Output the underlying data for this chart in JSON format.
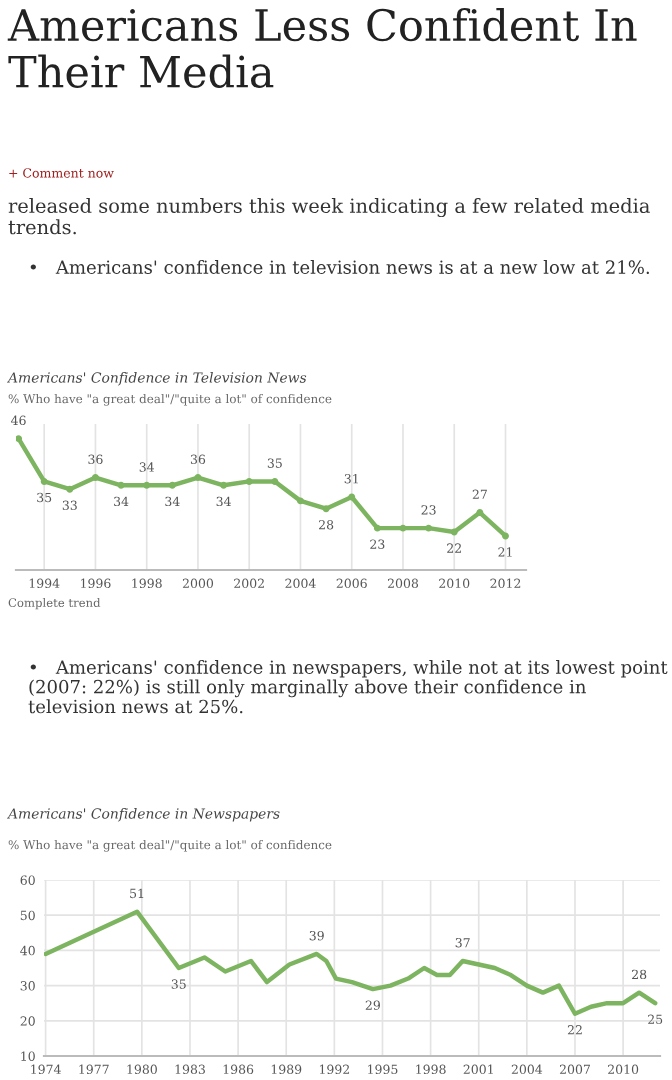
{
  "chart_data": [
    {
      "type": "line",
      "title": "Americans' Confidence in Television News",
      "subtitle": "% Who have \"a great deal\"/\"quite a lot\" of confidence",
      "annotations": [
        "Americans Less Confident In Their Media",
        "+ Comment now",
        "released some numbers this week indicating a few related media trends.",
        "•   Americans' confidence in television news is at a new low at 21%.",
        "Complete trend"
      ],
      "x": [
        1993,
        1994,
        1995,
        1996,
        1997,
        1998,
        1999,
        2000,
        2001,
        2002,
        2003,
        2004,
        2005,
        2006,
        2007,
        2008,
        2009,
        2010,
        2011,
        2012
      ],
      "series": [
        {
          "color": "#7db460",
          "values": [
            46,
            35,
            33,
            36,
            34,
            34,
            34,
            36,
            34,
            35,
            35,
            30,
            28,
            31,
            23,
            23,
            23,
            22,
            27,
            21
          ],
          "value_labels": [
            "46",
            "35",
            "33",
            "36",
            "34",
            "34",
            "34",
            "36",
            "34",
            null,
            "35",
            null,
            "28",
            "31",
            "23",
            null,
            "23",
            "22",
            "27",
            "21"
          ]
        }
      ],
      "xlim": [
        1992.9,
        2012.8
      ],
      "xticks": [
        1994,
        1996,
        1998,
        2000,
        2002,
        2004,
        2006,
        2008,
        2010,
        2012
      ],
      "tick_labels": "x",
      "grid": "x",
      "marker": "circle",
      "line_style": "solid",
      "legend": false
    },
    {
      "type": "line",
      "title": "Americans' Confidence in Newspapers",
      "subtitle": "% Who have \"a great deal\"/\"quite a lot\" of confidence",
      "annotations": [
        "•   Americans' confidence in newspapers, while not at its lowest point (2007: 22%) is still only marginally above their confidence in television news at 25%."
      ],
      "x": [
        1974,
        1979.7,
        1982.3,
        1983.9,
        1985.2,
        1986.8,
        1987.8,
        1989.2,
        1990.9,
        1991.5,
        1992.1,
        1993.1,
        1994.4,
        1995.5,
        1996.6,
        1997.6,
        1998.4,
        1999.2,
        2000,
        2001,
        2002,
        2003,
        2004,
        2005,
        2006,
        2007,
        2008,
        2009,
        2010,
        2011,
        2012
      ],
      "series": [
        {
          "color": "#7db460",
          "values": [
            39,
            51,
            35,
            38,
            34,
            37,
            31,
            36,
            39,
            37,
            32,
            31,
            29,
            30,
            32,
            35,
            33,
            33,
            37,
            36,
            35,
            33,
            30,
            28,
            30,
            22,
            24,
            25,
            25,
            28,
            25
          ],
          "value_labels": [
            null,
            "51",
            "35",
            null,
            null,
            null,
            null,
            null,
            "39",
            null,
            null,
            null,
            "29",
            null,
            null,
            null,
            null,
            null,
            "37",
            null,
            null,
            null,
            null,
            null,
            null,
            "22",
            null,
            null,
            null,
            "28",
            "25"
          ]
        }
      ],
      "xlim": [
        1973.9,
        2012.3
      ],
      "xticks": [
        1974,
        1977,
        1980,
        1983,
        1986,
        1989,
        1992,
        1995,
        1998,
        2001,
        2004,
        2007,
        2010
      ],
      "ylim": [
        10,
        60
      ],
      "yticks": [
        10,
        20,
        30,
        40,
        50,
        60
      ],
      "grid": true,
      "marker": "none",
      "line_style": "solid",
      "legend": false
    }
  ]
}
